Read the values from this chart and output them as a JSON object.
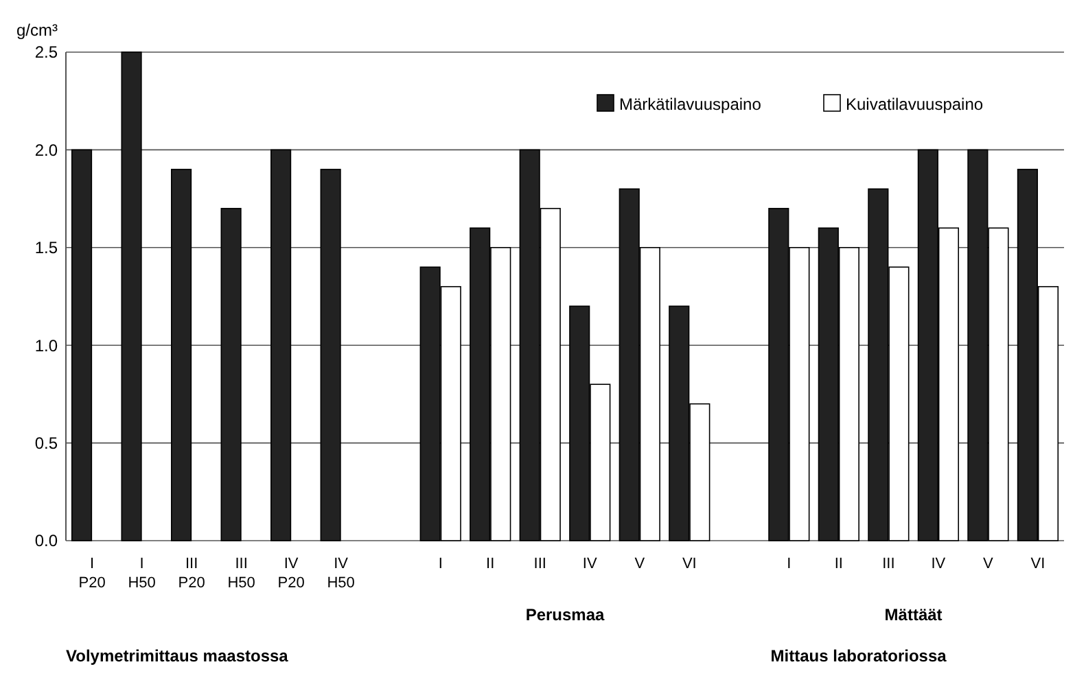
{
  "chart_data": {
    "type": "bar",
    "ylabel": "g/cm³",
    "categories": [
      "I\nP20",
      "I\nH50",
      "III\nP20",
      "III\nH50",
      "IV\nP20",
      "IV\nH50",
      null,
      "I",
      "II",
      "III",
      "IV",
      "V",
      "VI",
      null,
      "I",
      "II",
      "III",
      "IV",
      "V",
      "VI"
    ],
    "series": [
      {
        "name": "Märkätilavuuspaino",
        "color": "#222222",
        "values": [
          2.0,
          2.5,
          1.9,
          1.7,
          2.0,
          1.9,
          null,
          1.4,
          1.6,
          2.0,
          1.2,
          1.8,
          1.2,
          null,
          1.7,
          1.6,
          1.8,
          2.0,
          2.0,
          1.9
        ]
      },
      {
        "name": "Kuivatilavuuspaino",
        "color": "#ffffff",
        "values": [
          null,
          null,
          null,
          null,
          null,
          null,
          null,
          1.3,
          1.5,
          1.7,
          0.8,
          1.5,
          0.7,
          null,
          1.5,
          1.5,
          1.4,
          1.6,
          1.6,
          1.3
        ]
      }
    ],
    "ylim": [
      0,
      2.5
    ],
    "yticks": [
      {
        "value": 0,
        "label": "0.0"
      },
      {
        "value": 0.5,
        "label": "0.5"
      },
      {
        "value": 1,
        "label": "1.0"
      },
      {
        "value": 1.5,
        "label": "1.5"
      },
      {
        "value": 2,
        "label": "2.0"
      },
      {
        "value": 2.5,
        "label": "2.5"
      }
    ],
    "grid": "y",
    "legend": "top right",
    "annotations": [
      "Perusmaa",
      "Mättäät",
      "Volymetrimittaus maastossa",
      "Mittaus laboratoriossa"
    ]
  }
}
